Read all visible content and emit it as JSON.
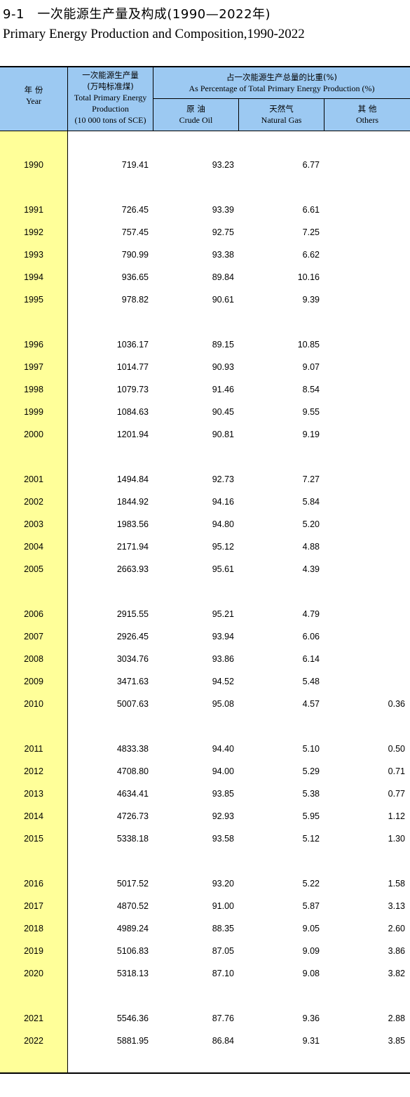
{
  "title": {
    "cn": "9-1　一次能源生产量及构成(1990—2022年)",
    "en": "Primary Energy Production and Composition,1990-2022"
  },
  "header": {
    "year_cn": "年 份",
    "year_en": "Year",
    "total_cn1": "一次能源生产量",
    "total_cn2": "(万吨标准煤)",
    "total_en1": "Total Primary Energy",
    "total_en2": "Production",
    "total_en3": "(10 000 tons of SCE)",
    "pct_cn": "占一次能源生产总量的比重(%)",
    "pct_en": "As Percentage of Total Primary Energy Production (%)",
    "oil_cn": "原 油",
    "oil_en": "Crude Oil",
    "gas_cn": "天然气",
    "gas_en": "Natural Gas",
    "oth_cn": "其 他",
    "oth_en": "Others"
  },
  "rows": [
    {
      "year": "1990",
      "total": "719.41",
      "oil": "93.23",
      "gas": "6.77",
      "others": ""
    },
    {
      "year": "1991",
      "total": "726.45",
      "oil": "93.39",
      "gas": "6.61",
      "others": ""
    },
    {
      "year": "1992",
      "total": "757.45",
      "oil": "92.75",
      "gas": "7.25",
      "others": ""
    },
    {
      "year": "1993",
      "total": "790.99",
      "oil": "93.38",
      "gas": "6.62",
      "others": ""
    },
    {
      "year": "1994",
      "total": "936.65",
      "oil": "89.84",
      "gas": "10.16",
      "others": ""
    },
    {
      "year": "1995",
      "total": "978.82",
      "oil": "90.61",
      "gas": "9.39",
      "others": ""
    },
    {
      "year": "1996",
      "total": "1036.17",
      "oil": "89.15",
      "gas": "10.85",
      "others": ""
    },
    {
      "year": "1997",
      "total": "1014.77",
      "oil": "90.93",
      "gas": "9.07",
      "others": ""
    },
    {
      "year": "1998",
      "total": "1079.73",
      "oil": "91.46",
      "gas": "8.54",
      "others": ""
    },
    {
      "year": "1999",
      "total": "1084.63",
      "oil": "90.45",
      "gas": "9.55",
      "others": ""
    },
    {
      "year": "2000",
      "total": "1201.94",
      "oil": "90.81",
      "gas": "9.19",
      "others": ""
    },
    {
      "year": "2001",
      "total": "1494.84",
      "oil": "92.73",
      "gas": "7.27",
      "others": ""
    },
    {
      "year": "2002",
      "total": "1844.92",
      "oil": "94.16",
      "gas": "5.84",
      "others": ""
    },
    {
      "year": "2003",
      "total": "1983.56",
      "oil": "94.80",
      "gas": "5.20",
      "others": ""
    },
    {
      "year": "2004",
      "total": "2171.94",
      "oil": "95.12",
      "gas": "4.88",
      "others": ""
    },
    {
      "year": "2005",
      "total": "2663.93",
      "oil": "95.61",
      "gas": "4.39",
      "others": ""
    },
    {
      "year": "2006",
      "total": "2915.55",
      "oil": "95.21",
      "gas": "4.79",
      "others": ""
    },
    {
      "year": "2007",
      "total": "2926.45",
      "oil": "93.94",
      "gas": "6.06",
      "others": ""
    },
    {
      "year": "2008",
      "total": "3034.76",
      "oil": "93.86",
      "gas": "6.14",
      "others": ""
    },
    {
      "year": "2009",
      "total": "3471.63",
      "oil": "94.52",
      "gas": "5.48",
      "others": ""
    },
    {
      "year": "2010",
      "total": "5007.63",
      "oil": "95.08",
      "gas": "4.57",
      "others": "0.36"
    },
    {
      "year": "2011",
      "total": "4833.38",
      "oil": "94.40",
      "gas": "5.10",
      "others": "0.50"
    },
    {
      "year": "2012",
      "total": "4708.80",
      "oil": "94.00",
      "gas": "5.29",
      "others": "0.71"
    },
    {
      "year": "2013",
      "total": "4634.41",
      "oil": "93.85",
      "gas": "5.38",
      "others": "0.77"
    },
    {
      "year": "2014",
      "total": "4726.73",
      "oil": "92.93",
      "gas": "5.95",
      "others": "1.12"
    },
    {
      "year": "2015",
      "total": "5338.18",
      "oil": "93.58",
      "gas": "5.12",
      "others": "1.30"
    },
    {
      "year": "2016",
      "total": "5017.52",
      "oil": "93.20",
      "gas": "5.22",
      "others": "1.58"
    },
    {
      "year": "2017",
      "total": "4870.52",
      "oil": "91.00",
      "gas": "5.87",
      "others": "3.13"
    },
    {
      "year": "2018",
      "total": "4989.24",
      "oil": "88.35",
      "gas": "9.05",
      "others": "2.60"
    },
    {
      "year": "2019",
      "total": "5106.83",
      "oil": "87.05",
      "gas": "9.09",
      "others": "3.86"
    },
    {
      "year": "2020",
      "total": "5318.13",
      "oil": "87.10",
      "gas": "9.08",
      "others": "3.82"
    },
    {
      "year": "2021",
      "total": "5546.36",
      "oil": "87.76",
      "gas": "9.36",
      "others": "2.88"
    },
    {
      "year": "2022",
      "total": "5881.95",
      "oil": "86.84",
      "gas": "9.31",
      "others": "3.85"
    }
  ]
}
